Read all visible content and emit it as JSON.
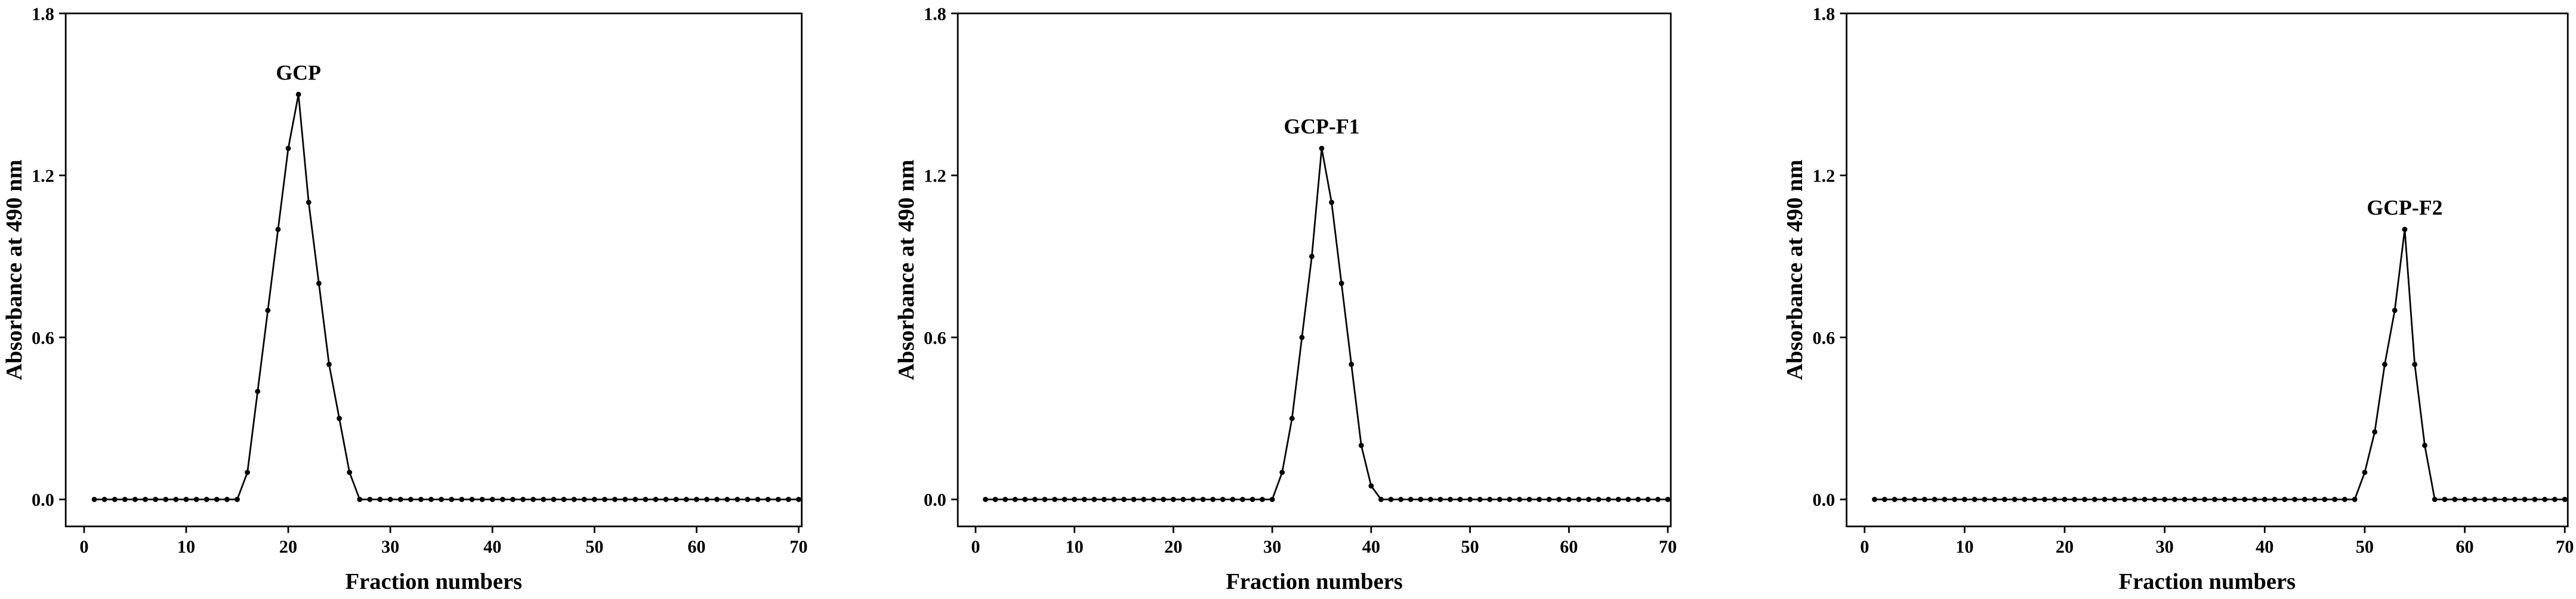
{
  "chart_data": [
    {
      "type": "line",
      "annotation": "GCP",
      "xlabel": "Fraction numbers",
      "ylabel": "Absorbance at 490 nm",
      "color": "#000000",
      "x": [
        1,
        2,
        3,
        4,
        5,
        6,
        7,
        8,
        9,
        10,
        11,
        12,
        13,
        14,
        15,
        16,
        17,
        18,
        19,
        20,
        21,
        22,
        23,
        24,
        25,
        26,
        27,
        28,
        29,
        30,
        31,
        32,
        33,
        34,
        35,
        36,
        37,
        38,
        39,
        40,
        41,
        42,
        43,
        44,
        45,
        46,
        47,
        48,
        49,
        50,
        51,
        52,
        53,
        54,
        55,
        56,
        57,
        58,
        59,
        60,
        61,
        62,
        63,
        64,
        65,
        66,
        67,
        68,
        69,
        70
      ],
      "values": [
        0,
        0,
        0,
        0,
        0,
        0,
        0,
        0,
        0,
        0,
        0,
        0,
        0,
        0,
        0,
        0.1,
        0.4,
        0.7,
        1.0,
        1.3,
        1.5,
        1.1,
        0.8,
        0.5,
        0.3,
        0.1,
        0,
        0,
        0,
        0,
        0,
        0,
        0,
        0,
        0,
        0,
        0,
        0,
        0,
        0,
        0,
        0,
        0,
        0,
        0,
        0,
        0,
        0,
        0,
        0,
        0,
        0,
        0,
        0,
        0,
        0,
        0,
        0,
        0,
        0,
        0,
        0,
        0,
        0,
        0,
        0,
        0,
        0,
        0,
        0
      ],
      "xlim": [
        -1.8,
        70.3
      ],
      "xticks": [
        0,
        10,
        20,
        30,
        40,
        50,
        60,
        70
      ],
      "ylim": [
        -0.1,
        1.8
      ],
      "yticks": [
        {
          "value": 0,
          "label": "0.0"
        },
        0.6,
        1.2,
        1.8
      ]
    },
    {
      "type": "line",
      "annotation": "GCP-F1",
      "xlabel": "Fraction numbers",
      "ylabel": "Absorbance at 490 nm",
      "color": "#000000",
      "x": [
        1,
        2,
        3,
        4,
        5,
        6,
        7,
        8,
        9,
        10,
        11,
        12,
        13,
        14,
        15,
        16,
        17,
        18,
        19,
        20,
        21,
        22,
        23,
        24,
        25,
        26,
        27,
        28,
        29,
        30,
        31,
        32,
        33,
        34,
        35,
        36,
        37,
        38,
        39,
        40,
        41,
        42,
        43,
        44,
        45,
        46,
        47,
        48,
        49,
        50,
        51,
        52,
        53,
        54,
        55,
        56,
        57,
        58,
        59,
        60,
        61,
        62,
        63,
        64,
        65,
        66,
        67,
        68,
        69,
        70
      ],
      "values": [
        0,
        0,
        0,
        0,
        0,
        0,
        0,
        0,
        0,
        0,
        0,
        0,
        0,
        0,
        0,
        0,
        0,
        0,
        0,
        0,
        0,
        0,
        0,
        0,
        0,
        0,
        0,
        0,
        0,
        0,
        0.1,
        0.3,
        0.6,
        0.9,
        1.3,
        1.1,
        0.8,
        0.5,
        0.2,
        0.05,
        0,
        0,
        0,
        0,
        0,
        0,
        0,
        0,
        0,
        0,
        0,
        0,
        0,
        0,
        0,
        0,
        0,
        0,
        0,
        0,
        0,
        0,
        0,
        0,
        0,
        0,
        0,
        0,
        0,
        0
      ],
      "xlim": [
        -1.8,
        70.3
      ],
      "xticks": [
        0,
        10,
        20,
        30,
        40,
        50,
        60,
        70
      ],
      "ylim": [
        -0.1,
        1.8
      ],
      "yticks": [
        {
          "value": 0,
          "label": "0.0"
        },
        0.6,
        1.2,
        1.8
      ]
    },
    {
      "type": "line",
      "annotation": "GCP-F2",
      "xlabel": "Fraction numbers",
      "ylabel": "Absorbance at 490 nm",
      "color": "#000000",
      "x": [
        1,
        2,
        3,
        4,
        5,
        6,
        7,
        8,
        9,
        10,
        11,
        12,
        13,
        14,
        15,
        16,
        17,
        18,
        19,
        20,
        21,
        22,
        23,
        24,
        25,
        26,
        27,
        28,
        29,
        30,
        31,
        32,
        33,
        34,
        35,
        36,
        37,
        38,
        39,
        40,
        41,
        42,
        43,
        44,
        45,
        46,
        47,
        48,
        49,
        50,
        51,
        52,
        53,
        54,
        55,
        56,
        57,
        58,
        59,
        60,
        61,
        62,
        63,
        64,
        65,
        66,
        67,
        68,
        69,
        70
      ],
      "values": [
        0,
        0,
        0,
        0,
        0,
        0,
        0,
        0,
        0,
        0,
        0,
        0,
        0,
        0,
        0,
        0,
        0,
        0,
        0,
        0,
        0,
        0,
        0,
        0,
        0,
        0,
        0,
        0,
        0,
        0,
        0,
        0,
        0,
        0,
        0,
        0,
        0,
        0,
        0,
        0,
        0,
        0,
        0,
        0,
        0,
        0,
        0,
        0,
        0,
        0.1,
        0.25,
        0.5,
        0.7,
        1.0,
        0.5,
        0.2,
        0,
        0,
        0,
        0,
        0,
        0,
        0,
        0,
        0,
        0,
        0,
        0,
        0,
        0
      ],
      "xlim": [
        -1.8,
        70.3
      ],
      "xticks": [
        0,
        10,
        20,
        30,
        40,
        50,
        60,
        70
      ],
      "ylim": [
        -0.1,
        1.8
      ],
      "yticks": [
        {
          "value": 0,
          "label": "0.0"
        },
        0.6,
        1.2,
        1.8
      ]
    }
  ]
}
